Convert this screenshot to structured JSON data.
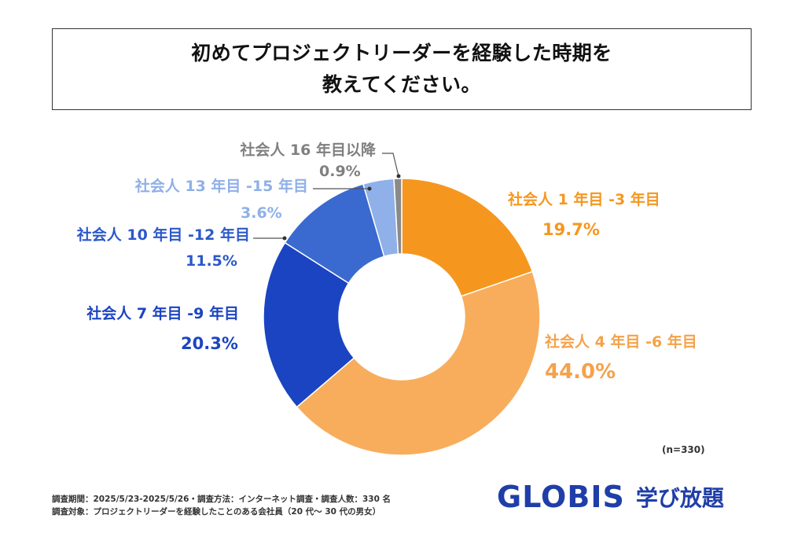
{
  "title": {
    "line1": "初めてプロジェクトリーダーを経験した時期を",
    "line2": "教えてください。"
  },
  "chart_data": {
    "type": "pie",
    "variant": "donut",
    "categories": [
      "社会人 1 年目 -3 年目",
      "社会人 4 年目 -6 年目",
      "社会人 7 年目 -9 年目",
      "社会人 10 年目 -12 年目",
      "社会人 13 年目 -15 年目",
      "社会人 16 年目以降"
    ],
    "values": [
      19.7,
      44.0,
      20.3,
      11.5,
      3.6,
      0.9
    ],
    "value_labels": [
      "19.7%",
      "44.0%",
      "20.3%",
      "11.5%",
      "3.6%",
      "0.9%"
    ],
    "colors": [
      "#f5971e",
      "#f8ad5c",
      "#1b44c2",
      "#3a6ad0",
      "#8fb0e8",
      "#8a8a8a"
    ],
    "label_colors": [
      "#f5971e",
      "#f4a24a",
      "#1b44c2",
      "#2b59c9",
      "#8fb0e8",
      "#808080"
    ],
    "unit": "%",
    "sample_note": "(n=330)"
  },
  "footer": {
    "line1": "調査期間：2025/5/23-2025/5/26・調査方法：インターネット調査・調査人数：330 名",
    "line2": "調査対象：プロジェクトリーダーを経験したことのある会社員（20 代～ 30 代の男女）"
  },
  "brand": {
    "logo": "GLOBIS",
    "sub": "学び放題",
    "color": "#1f3ea8"
  }
}
